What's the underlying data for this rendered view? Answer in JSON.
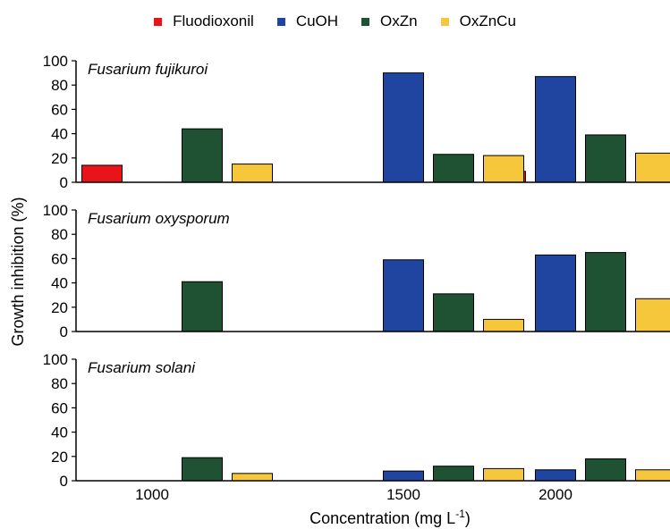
{
  "chart_data": {
    "type": "bar",
    "legend_placement": "top-center",
    "grid": false,
    "xlabel_main": "Concentration (mg L",
    "xlabel_sup": "-1",
    "xlabel_end": ")",
    "ylabel": "Growth inhibition (%)",
    "categories": [
      "1000",
      "1500",
      "2000"
    ],
    "ylim": [
      0,
      100
    ],
    "yticks": [
      "0",
      "20",
      "40",
      "60",
      "80",
      "100"
    ],
    "legend": [
      {
        "name": "Fluodioxonil",
        "color": "#e8131b"
      },
      {
        "name": "CuOH",
        "color": "#1f45a1"
      },
      {
        "name": "OxZn",
        "color": "#1e5233"
      },
      {
        "name": "OxZnCu",
        "color": "#f7c73b"
      }
    ],
    "panels": [
      {
        "title": "Fusarium fujikuroi",
        "series": [
          {
            "name": "Fluodioxonil",
            "values": [
              14,
              0,
              9
            ]
          },
          {
            "name": "CuOH",
            "values": [
              0,
              90,
              87
            ]
          },
          {
            "name": "OxZn",
            "values": [
              44,
              23,
              39
            ]
          },
          {
            "name": "OxZnCu",
            "values": [
              15,
              22,
              24
            ]
          }
        ]
      },
      {
        "title": "Fusarium oxysporum",
        "series": [
          {
            "name": "Fluodioxonil",
            "values": [
              0,
              0,
              0
            ]
          },
          {
            "name": "CuOH",
            "values": [
              0,
              59,
              63
            ]
          },
          {
            "name": "OxZn",
            "values": [
              41,
              31,
              65
            ]
          },
          {
            "name": "OxZnCu",
            "values": [
              0,
              10,
              27
            ]
          }
        ]
      },
      {
        "title": "Fusarium solani",
        "series": [
          {
            "name": "Fluodioxonil",
            "values": [
              0,
              0,
              0
            ]
          },
          {
            "name": "CuOH",
            "values": [
              0,
              8,
              9
            ]
          },
          {
            "name": "OxZn",
            "values": [
              19,
              12,
              18
            ]
          },
          {
            "name": "OxZnCu",
            "values": [
              6,
              10,
              9
            ]
          }
        ]
      }
    ]
  }
}
